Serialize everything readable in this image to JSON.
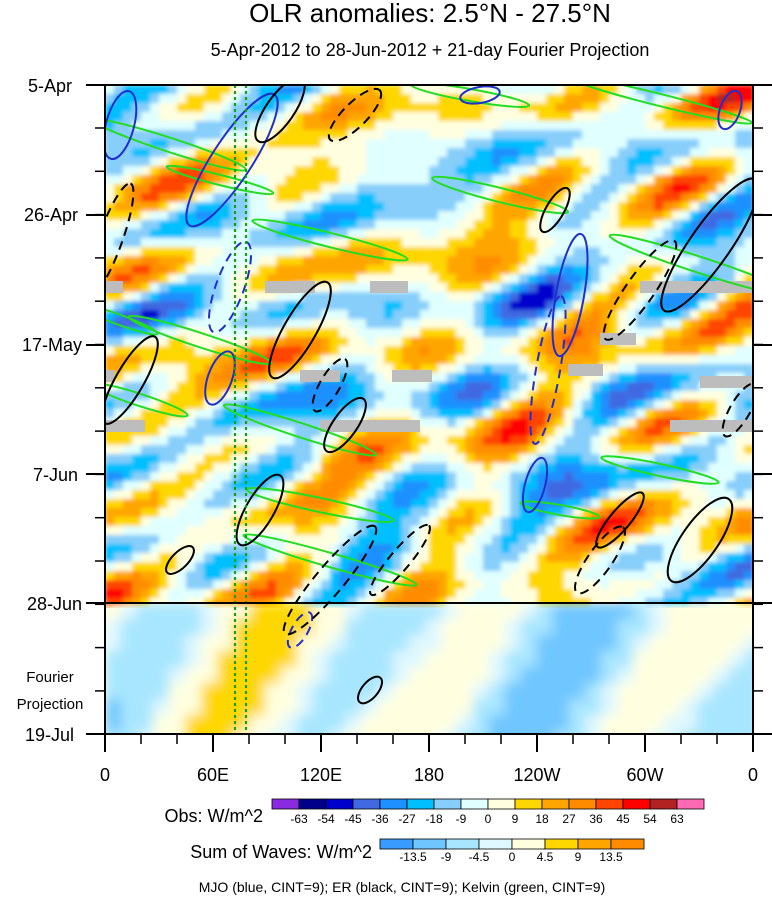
{
  "chart_data": {
    "type": "heatmap",
    "title": "OLR anomalies: 2.5°N - 27.5°N",
    "subtitle": "5-Apr-2012 to 28-Jun-2012 + 21-day Fourier Projection",
    "x_ticks": [
      "0",
      "60E",
      "120E",
      "180",
      "120W",
      "60W",
      "0"
    ],
    "y_ticks": [
      "5-Apr",
      "26-Apr",
      "17-May",
      "7-Jun",
      "28-Jun",
      "19-Jul"
    ],
    "projection_label": [
      "Fourier",
      "Projection"
    ],
    "obs_colorbar": {
      "label": "Obs: W/m^2",
      "levels": [
        "-63",
        "-54",
        "-45",
        "-36",
        "-27",
        "-18",
        "-9",
        "0",
        "9",
        "18",
        "27",
        "36",
        "45",
        "54",
        "63"
      ],
      "colors": [
        "#8a2be2",
        "#00008b",
        "#0000cd",
        "#4169e1",
        "#1e90ff",
        "#00bfff",
        "#87cefa",
        "#e0ffff",
        "#ffffe0",
        "#ffd700",
        "#ffa500",
        "#ff8c00",
        "#ff4500",
        "#ff0000",
        "#b22222",
        "#ff69b4"
      ]
    },
    "waves_colorbar": {
      "label": "Sum of Waves: W/m^2",
      "levels": [
        "-13.5",
        "-9",
        "-4.5",
        "0",
        "4.5",
        "9",
        "13.5"
      ],
      "colors": [
        "#3a9bff",
        "#6fc6ff",
        "#a8e6ff",
        "#dff8ff",
        "#ffffe0",
        "#ffd700",
        "#ffa500",
        "#ff8c00"
      ]
    },
    "caption": "MJO (blue, CINT=9); ER (black, CINT=9); Kelvin (green, CINT=9)",
    "vertical_reference_longitudes_deg": [
      73,
      79
    ],
    "observation_end": "28-Jun"
  }
}
